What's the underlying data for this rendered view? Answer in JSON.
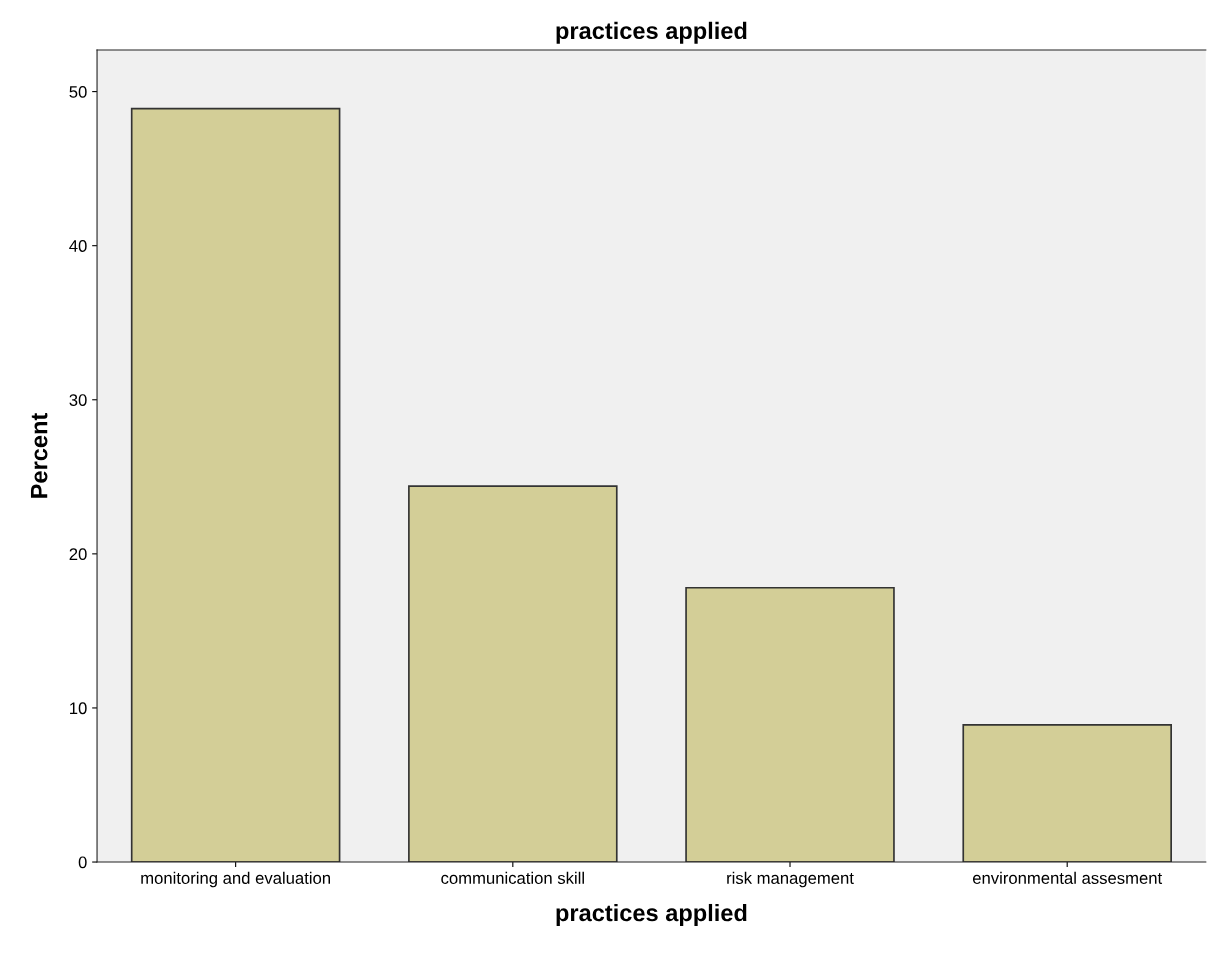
{
  "chart_data": {
    "type": "bar",
    "title": "practices applied",
    "xlabel": "practices applied",
    "ylabel": "Percent",
    "categories": [
      "monitoring and evaluation",
      "communication skill",
      "risk management",
      "environmental assesment"
    ],
    "values": [
      48.9,
      24.4,
      17.8,
      8.9
    ],
    "color": "#d3ce97",
    "ylim": [
      0,
      52.7
    ],
    "yticks": [
      0,
      10,
      20,
      30,
      40,
      50
    ],
    "grid": false,
    "legend": false
  }
}
